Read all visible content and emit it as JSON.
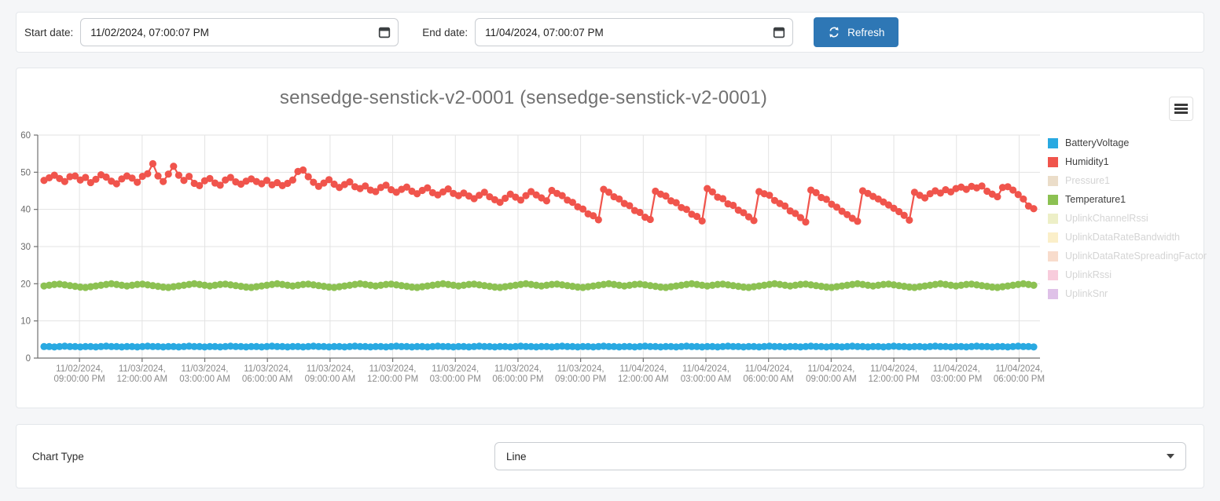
{
  "toolbar": {
    "start_label": "Start date:",
    "start_value": "11/02/2024, 07:00:07 PM",
    "end_label": "End date:",
    "end_value": "11/04/2024, 07:00:07 PM",
    "refresh_label": "Refresh",
    "refresh_color": "#2E77B5"
  },
  "footer": {
    "chart_type_label": "Chart Type",
    "chart_type_value": "Line"
  },
  "chart_data": {
    "type": "line",
    "title": "sensedge-senstick-v2-0001 (sensedge-senstick-v2-0001)",
    "ylim": [
      0,
      60
    ],
    "y_ticks": [
      0,
      10,
      20,
      30,
      40,
      50,
      60
    ],
    "grid": true,
    "legend_position": "right",
    "x_range_hours": 48,
    "x_first_tick_offset_hours": 2,
    "x_tick_step_hours": 3,
    "x_ticks": [
      {
        "date": "11/02/2024,",
        "time": "09:00:00 PM"
      },
      {
        "date": "11/03/2024,",
        "time": "12:00:00 AM"
      },
      {
        "date": "11/03/2024,",
        "time": "03:00:00 AM"
      },
      {
        "date": "11/03/2024,",
        "time": "06:00:00 AM"
      },
      {
        "date": "11/03/2024,",
        "time": "09:00:00 AM"
      },
      {
        "date": "11/03/2024,",
        "time": "12:00:00 PM"
      },
      {
        "date": "11/03/2024,",
        "time": "03:00:00 PM"
      },
      {
        "date": "11/03/2024,",
        "time": "06:00:00 PM"
      },
      {
        "date": "11/03/2024,",
        "time": "09:00:00 PM"
      },
      {
        "date": "11/04/2024,",
        "time": "12:00:00 AM"
      },
      {
        "date": "11/04/2024,",
        "time": "03:00:00 AM"
      },
      {
        "date": "11/04/2024,",
        "time": "06:00:00 AM"
      },
      {
        "date": "11/04/2024,",
        "time": "09:00:00 AM"
      },
      {
        "date": "11/04/2024,",
        "time": "12:00:00 PM"
      },
      {
        "date": "11/04/2024,",
        "time": "03:00:00 PM"
      },
      {
        "date": "11/04/2024,",
        "time": "06:00:00 PM"
      }
    ],
    "series": [
      {
        "name": "BatteryVoltage",
        "color": "#29A9E1",
        "active": true,
        "values": [
          3.1,
          3.1,
          3.0,
          3.1,
          3.2,
          3.1,
          3.1,
          3.0,
          3.1,
          3.1,
          3.0,
          3.1,
          3.2,
          3.1,
          3.1,
          3.0,
          3.1,
          3.1,
          3.0,
          3.1,
          3.2,
          3.1,
          3.1,
          3.0,
          3.1,
          3.1,
          3.0,
          3.1,
          3.2,
          3.1,
          3.1,
          3.0,
          3.1,
          3.1,
          3.0,
          3.1,
          3.2,
          3.1,
          3.1,
          3.0,
          3.1,
          3.1,
          3.0,
          3.1,
          3.2,
          3.1,
          3.1,
          3.0,
          3.1,
          3.1,
          3.0,
          3.1,
          3.2,
          3.1,
          3.1,
          3.0,
          3.1,
          3.1,
          3.0,
          3.1,
          3.2,
          3.1,
          3.1,
          3.0,
          3.1,
          3.1,
          3.0,
          3.1,
          3.2,
          3.1,
          3.1,
          3.0,
          3.1,
          3.1,
          3.0,
          3.1,
          3.2,
          3.1,
          3.1,
          3.0,
          3.1,
          3.1,
          3.0,
          3.1,
          3.2,
          3.1,
          3.1,
          3.0,
          3.1,
          3.1,
          3.0,
          3.1,
          3.2,
          3.1,
          3.1,
          3.0,
          3.1,
          3.1,
          3.0,
          3.1,
          3.2,
          3.1,
          3.1,
          3.0,
          3.1,
          3.1,
          3.0,
          3.1,
          3.2,
          3.1,
          3.1,
          3.0,
          3.1,
          3.1,
          3.0,
          3.1,
          3.2,
          3.1,
          3.1,
          3.0,
          3.1,
          3.1,
          3.0,
          3.1,
          3.2,
          3.1,
          3.1,
          3.0,
          3.1,
          3.1,
          3.0,
          3.1,
          3.2,
          3.1,
          3.1,
          3.0,
          3.1,
          3.1,
          3.0,
          3.1,
          3.2,
          3.1,
          3.1,
          3.0,
          3.1,
          3.1,
          3.0,
          3.1,
          3.2,
          3.1,
          3.1,
          3.0,
          3.1,
          3.1,
          3.0,
          3.1,
          3.2,
          3.1,
          3.1,
          3.0,
          3.1,
          3.1,
          3.0,
          3.1,
          3.2,
          3.1,
          3.1,
          3.0,
          3.1,
          3.1,
          3.0,
          3.1,
          3.2,
          3.1,
          3.1,
          3.0,
          3.1,
          3.1,
          3.0,
          3.1,
          3.2,
          3.1,
          3.1,
          3.0,
          3.1,
          3.1,
          3.0,
          3.1,
          3.2,
          3.1,
          3.1,
          3.0
        ]
      },
      {
        "name": "Humidity1",
        "color": "#F0544C",
        "active": true,
        "values": [
          47.8,
          48.5,
          49.2,
          48.3,
          47.5,
          48.8,
          49.0,
          47.9,
          48.6,
          47.2,
          48.1,
          49.3,
          48.7,
          47.6,
          46.9,
          48.2,
          49.0,
          48.4,
          47.3,
          48.9,
          49.6,
          52.3,
          49.0,
          47.5,
          49.5,
          51.6,
          49.2,
          47.8,
          48.9,
          47.0,
          46.4,
          47.7,
          48.3,
          47.1,
          46.5,
          47.9,
          48.6,
          47.4,
          46.8,
          47.6,
          48.2,
          47.5,
          46.9,
          47.8,
          46.6,
          47.2,
          46.4,
          47.0,
          47.9,
          50.2,
          50.6,
          48.8,
          47.3,
          46.2,
          47.1,
          48.0,
          46.8,
          45.9,
          46.7,
          47.4,
          46.1,
          45.6,
          46.3,
          45.2,
          44.8,
          45.9,
          46.5,
          45.3,
          44.6,
          45.4,
          46.0,
          44.9,
          44.2,
          45.1,
          45.8,
          44.5,
          43.9,
          44.7,
          45.5,
          44.3,
          43.7,
          44.4,
          43.6,
          42.9,
          43.8,
          44.6,
          43.4,
          42.6,
          41.9,
          43.0,
          44.1,
          43.3,
          42.5,
          43.7,
          44.8,
          43.9,
          43.1,
          42.3,
          45.1,
          44.3,
          43.7,
          42.5,
          41.9,
          40.7,
          40.1,
          38.8,
          38.3,
          37.2,
          45.4,
          44.6,
          43.4,
          42.8,
          41.6,
          41.0,
          39.7,
          39.2,
          37.9,
          37.3,
          44.9,
          44.1,
          43.6,
          42.3,
          41.8,
          40.5,
          40.0,
          38.7,
          38.1,
          36.9,
          45.6,
          44.7,
          43.3,
          42.9,
          41.5,
          41.1,
          39.8,
          39.1,
          38.0,
          37.0,
          44.8,
          44.2,
          43.8,
          42.4,
          41.6,
          40.9,
          39.6,
          38.9,
          37.8,
          36.6,
          45.2,
          44.5,
          43.2,
          42.7,
          41.4,
          40.6,
          39.5,
          38.6,
          37.6,
          36.8,
          45.0,
          44.3,
          43.5,
          42.8,
          42.0,
          41.2,
          40.3,
          39.4,
          38.4,
          37.1,
          44.6,
          43.8,
          43.1,
          44.2,
          45.0,
          44.4,
          45.3,
          44.7,
          45.6,
          46.0,
          45.4,
          46.2,
          45.8,
          46.3,
          44.9,
          44.1,
          43.4,
          45.9,
          46.1,
          45.2,
          44.0,
          42.8,
          40.9,
          40.2
        ]
      },
      {
        "name": "Pressure1",
        "color": "#EBDDC9",
        "active": false
      },
      {
        "name": "Temperature1",
        "color": "#8CC152",
        "active": true,
        "values": [
          19.4,
          19.6,
          19.8,
          19.9,
          19.7,
          19.5,
          19.3,
          19.1,
          19.0,
          19.2,
          19.4,
          19.6,
          19.8,
          20.0,
          19.8,
          19.6,
          19.4,
          19.6,
          19.8,
          19.9,
          19.7,
          19.5,
          19.3,
          19.1,
          19.0,
          19.2,
          19.4,
          19.6,
          19.8,
          20.0,
          19.8,
          19.6,
          19.4,
          19.6,
          19.8,
          19.9,
          19.7,
          19.5,
          19.3,
          19.1,
          19.0,
          19.2,
          19.4,
          19.6,
          19.8,
          20.0,
          19.8,
          19.6,
          19.4,
          19.6,
          19.8,
          19.9,
          19.7,
          19.5,
          19.3,
          19.1,
          19.0,
          19.2,
          19.4,
          19.6,
          19.8,
          20.0,
          19.8,
          19.6,
          19.4,
          19.6,
          19.8,
          19.9,
          19.7,
          19.5,
          19.3,
          19.1,
          19.0,
          19.2,
          19.4,
          19.6,
          19.8,
          20.0,
          19.8,
          19.6,
          19.4,
          19.6,
          19.8,
          19.9,
          19.7,
          19.5,
          19.3,
          19.1,
          19.0,
          19.2,
          19.4,
          19.6,
          19.8,
          20.0,
          19.8,
          19.6,
          19.4,
          19.6,
          19.8,
          19.9,
          19.7,
          19.5,
          19.3,
          19.1,
          19.0,
          19.2,
          19.4,
          19.6,
          19.8,
          20.0,
          19.8,
          19.6,
          19.4,
          19.6,
          19.8,
          19.9,
          19.7,
          19.5,
          19.3,
          19.1,
          19.0,
          19.2,
          19.4,
          19.6,
          19.8,
          20.0,
          19.8,
          19.6,
          19.4,
          19.6,
          19.8,
          19.9,
          19.7,
          19.5,
          19.3,
          19.1,
          19.0,
          19.2,
          19.4,
          19.6,
          19.8,
          20.0,
          19.8,
          19.6,
          19.4,
          19.6,
          19.8,
          19.9,
          19.7,
          19.5,
          19.3,
          19.1,
          19.0,
          19.2,
          19.4,
          19.6,
          19.8,
          20.0,
          19.8,
          19.6,
          19.4,
          19.6,
          19.8,
          19.9,
          19.7,
          19.5,
          19.3,
          19.1,
          19.0,
          19.2,
          19.4,
          19.6,
          19.8,
          20.0,
          19.8,
          19.6,
          19.4,
          19.6,
          19.8,
          19.9,
          19.7,
          19.5,
          19.3,
          19.1,
          19.0,
          19.2,
          19.4,
          19.6,
          19.8,
          20.0,
          19.8,
          19.6
        ]
      },
      {
        "name": "UplinkChannelRssi",
        "color": "#EDEFC7",
        "active": false
      },
      {
        "name": "UplinkDataRateBandwidth",
        "color": "#FBEFC9",
        "active": false
      },
      {
        "name": "UplinkDataRateSpreadingFactor",
        "color": "#F8DCCC",
        "active": false
      },
      {
        "name": "UplinkRssi",
        "color": "#F8CCDC",
        "active": false
      },
      {
        "name": "UplinkSnr",
        "color": "#DFC1E8",
        "active": false
      }
    ],
    "style": {
      "grid_color": "#E3E3E3",
      "axis_color": "#707070",
      "y_label_color": "#6B6B6B",
      "x_label_color": "#8A8A8A",
      "title_color": "#717171",
      "legend_active_text": "#3F3F3F",
      "legend_disabled_text": "#D4D4D4"
    }
  }
}
